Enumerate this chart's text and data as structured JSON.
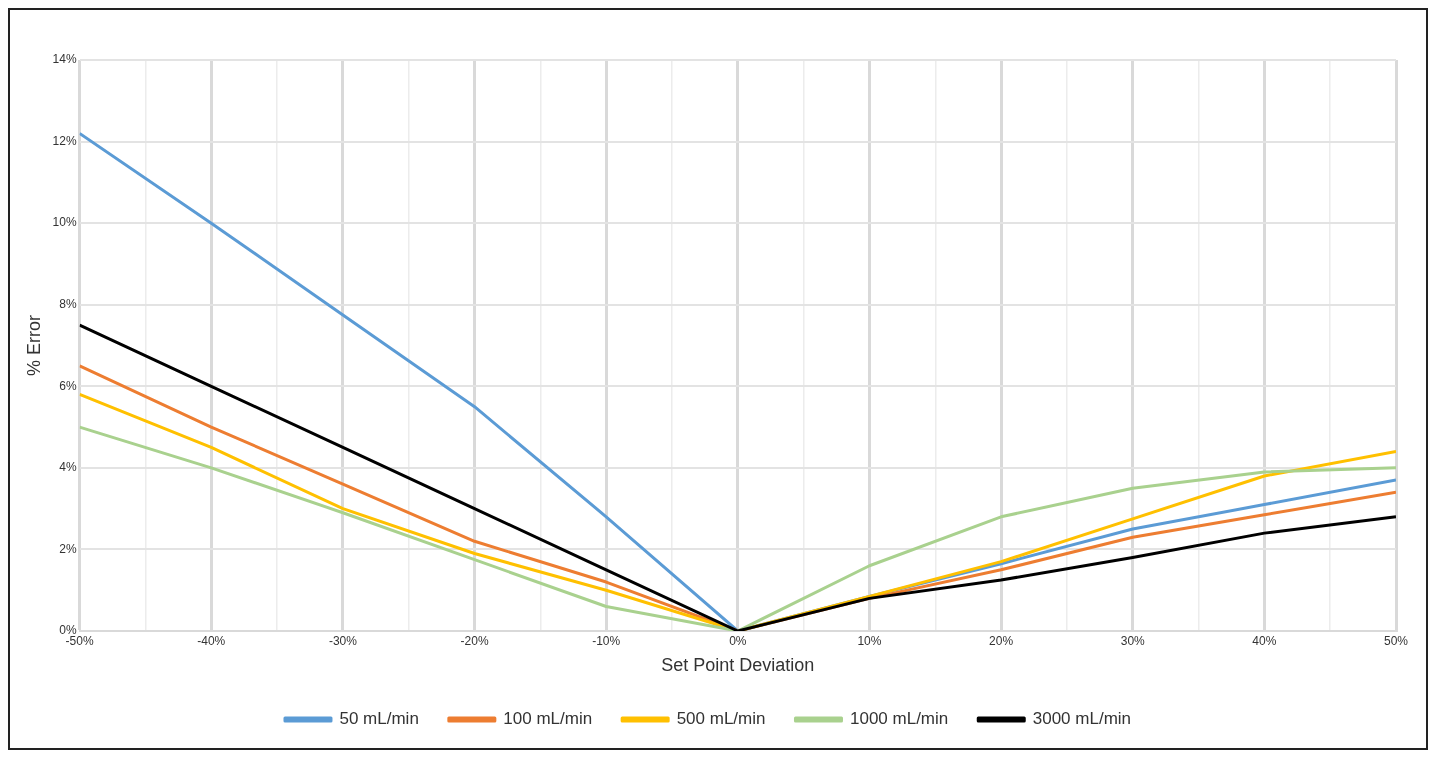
{
  "chart_data": {
    "type": "line",
    "xlabel": "Set Point Deviation",
    "ylabel": "% Error",
    "x": [
      -50,
      -40,
      -30,
      -20,
      -10,
      0,
      10,
      20,
      30,
      40,
      50
    ],
    "series": [
      {
        "name": "50 mL/min",
        "color": "#5b9bd5",
        "values": [
          12.2,
          10.0,
          7.75,
          5.5,
          2.8,
          0,
          0.85,
          1.65,
          2.5,
          3.1,
          3.7
        ]
      },
      {
        "name": "100 mL/min",
        "color": "#ed7d31",
        "values": [
          6.5,
          5.0,
          3.6,
          2.2,
          1.2,
          0,
          0.8,
          1.5,
          2.3,
          2.85,
          3.4
        ]
      },
      {
        "name": "500 mL/min",
        "color": "#ffc000",
        "values": [
          5.8,
          4.5,
          3.0,
          1.9,
          1.0,
          0,
          0.85,
          1.7,
          2.75,
          3.8,
          4.4
        ]
      },
      {
        "name": "1000 mL/min",
        "color": "#a9d18e",
        "values": [
          5.0,
          4.0,
          2.9,
          1.75,
          0.6,
          0,
          1.6,
          2.8,
          3.5,
          3.9,
          4.0
        ]
      },
      {
        "name": "3000 mL/min",
        "color": "#000000",
        "values": [
          7.5,
          6.0,
          4.5,
          3.0,
          1.5,
          0,
          0.8,
          1.25,
          1.8,
          2.4,
          2.8
        ]
      }
    ],
    "xlim": [
      -50,
      50
    ],
    "xticks": [
      {
        "value": -50,
        "label": "-50%"
      },
      {
        "value": -45,
        "label": null
      },
      {
        "value": -40,
        "label": "-40%"
      },
      {
        "value": -35,
        "label": null
      },
      {
        "value": -30,
        "label": "-30%"
      },
      {
        "value": -25,
        "label": null
      },
      {
        "value": -20,
        "label": "-20%"
      },
      {
        "value": -15,
        "label": null
      },
      {
        "value": -10,
        "label": "-10%"
      },
      {
        "value": -5,
        "label": null
      },
      {
        "value": 0,
        "label": "0%"
      },
      {
        "value": 5,
        "label": null
      },
      {
        "value": 10,
        "label": "10%"
      },
      {
        "value": 15,
        "label": null
      },
      {
        "value": 20,
        "label": "20%"
      },
      {
        "value": 25,
        "label": null
      },
      {
        "value": 30,
        "label": "30%"
      },
      {
        "value": 35,
        "label": null
      },
      {
        "value": 40,
        "label": "40%"
      },
      {
        "value": 45,
        "label": null
      },
      {
        "value": 50,
        "label": "50%"
      }
    ],
    "ylim": [
      0,
      14
    ],
    "yticks": [
      {
        "value": 0,
        "label": "0%"
      },
      {
        "value": 2,
        "label": "2%"
      },
      {
        "value": 4,
        "label": "4%"
      },
      {
        "value": 6,
        "label": "6%"
      },
      {
        "value": 8,
        "label": "8%"
      },
      {
        "value": 10,
        "label": "10%"
      },
      {
        "value": 12,
        "label": "12%"
      },
      {
        "value": 14,
        "label": "14%"
      }
    ],
    "grid": true,
    "legend": "bottom",
    "marker": "none",
    "line_style": "solid"
  }
}
